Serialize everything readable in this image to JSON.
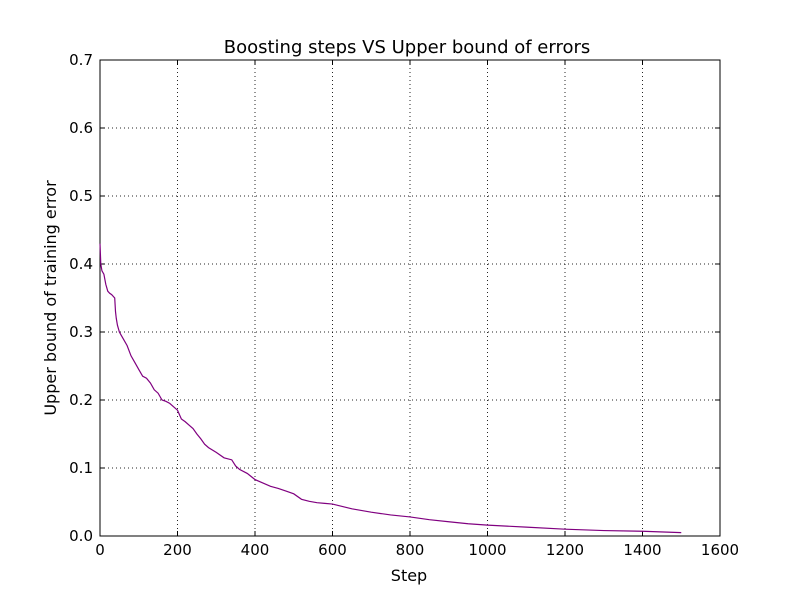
{
  "chart_data": {
    "type": "line",
    "title": "Boosting steps VS Upper bound of errors",
    "xlabel": "Step",
    "ylabel": "Upper bound of training error",
    "xlim": [
      0,
      1600
    ],
    "ylim": [
      0,
      0.7
    ],
    "xticks": [
      0,
      200,
      400,
      600,
      800,
      1000,
      1200,
      1400,
      1600
    ],
    "yticks": [
      0.0,
      0.1,
      0.2,
      0.3,
      0.4,
      0.5,
      0.6,
      0.7
    ],
    "grid": true,
    "line_color": "#800080",
    "series": [
      {
        "x": [
          0,
          2,
          5,
          10,
          15,
          20,
          25,
          30,
          38,
          40,
          42,
          45,
          50,
          55,
          60,
          70,
          80,
          90,
          100,
          110,
          120,
          130,
          140,
          150,
          160,
          170,
          180,
          190,
          200,
          210,
          220,
          230,
          240,
          250,
          260,
          270,
          280,
          300,
          320,
          340,
          350,
          360,
          380,
          400,
          420,
          440,
          460,
          480,
          500,
          520,
          540,
          560,
          580,
          600,
          650,
          700,
          750,
          800,
          850,
          900,
          950,
          1000,
          1100,
          1200,
          1300,
          1400,
          1500
        ],
        "y": [
          0.43,
          0.4,
          0.39,
          0.385,
          0.37,
          0.36,
          0.357,
          0.355,
          0.35,
          0.33,
          0.32,
          0.31,
          0.3,
          0.295,
          0.29,
          0.28,
          0.265,
          0.255,
          0.245,
          0.235,
          0.232,
          0.225,
          0.215,
          0.21,
          0.2,
          0.198,
          0.195,
          0.19,
          0.185,
          0.172,
          0.168,
          0.163,
          0.158,
          0.15,
          0.143,
          0.135,
          0.13,
          0.123,
          0.115,
          0.112,
          0.103,
          0.098,
          0.092,
          0.083,
          0.078,
          0.073,
          0.07,
          0.066,
          0.062,
          0.054,
          0.051,
          0.049,
          0.048,
          0.047,
          0.04,
          0.035,
          0.031,
          0.028,
          0.024,
          0.021,
          0.018,
          0.016,
          0.013,
          0.01,
          0.008,
          0.007,
          0.005
        ]
      }
    ]
  }
}
